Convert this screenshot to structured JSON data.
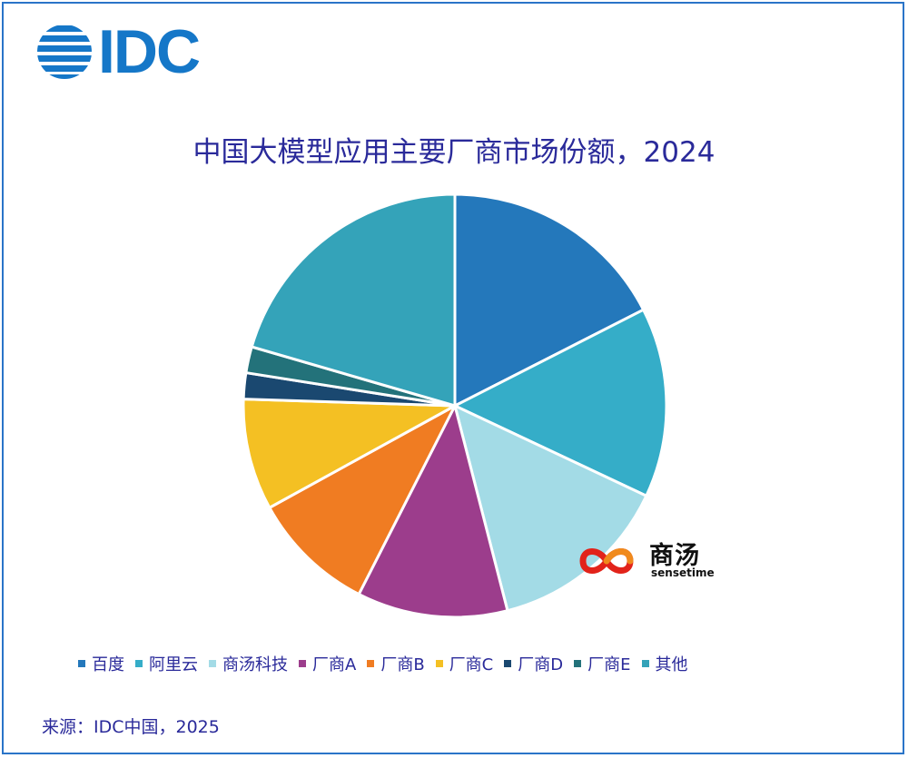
{
  "logo": {
    "text": "IDC",
    "color": "#1577c8"
  },
  "chart_data": {
    "type": "pie",
    "title": "中国大模型应用主要厂商市场份额，2024",
    "start_angle_deg": 0,
    "direction": "clockwise",
    "slices": [
      {
        "label": "百度",
        "value": 17.5,
        "color": "#2478bb"
      },
      {
        "label": "阿里云",
        "value": 14.5,
        "color": "#35adc8"
      },
      {
        "label": "商汤科技",
        "value": 14.0,
        "color": "#a3dbe6"
      },
      {
        "label": "厂商A",
        "value": 11.5,
        "color": "#9c3d8c"
      },
      {
        "label": "厂商B",
        "value": 9.5,
        "color": "#f07c22"
      },
      {
        "label": "厂商C",
        "value": 8.5,
        "color": "#f4c023"
      },
      {
        "label": "厂商D",
        "value": 2.0,
        "color": "#1a4870"
      },
      {
        "label": "厂商E",
        "value": 2.0,
        "color": "#23727a"
      },
      {
        "label": "其他",
        "value": 20.5,
        "color": "#34a3b9"
      }
    ],
    "legend_position": "bottom"
  },
  "watermark": {
    "cn": "商汤",
    "en": "sensetime"
  },
  "source": "来源：IDC中国，2025"
}
